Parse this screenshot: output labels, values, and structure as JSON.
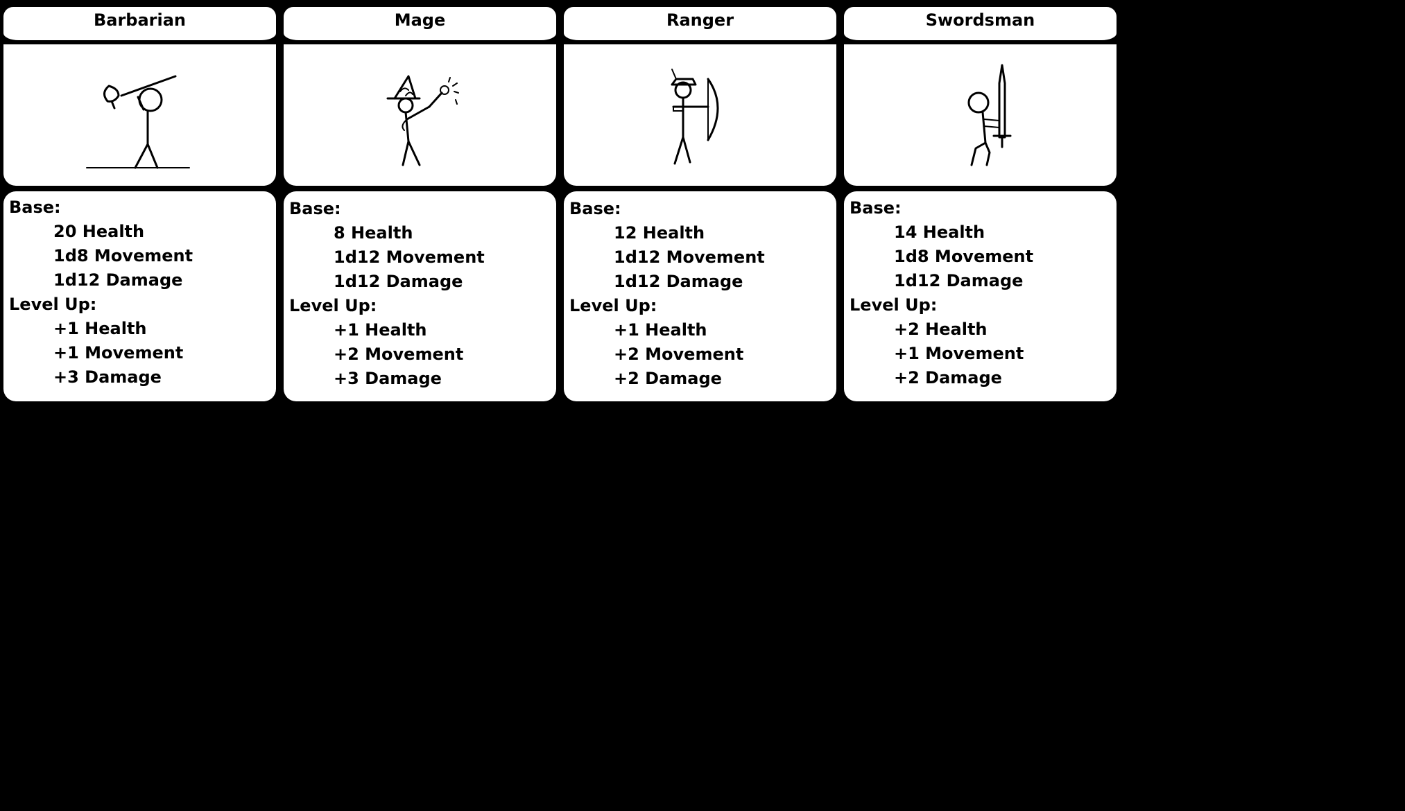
{
  "stat_headings": {
    "base": "Base:",
    "level_up": "Level Up:"
  },
  "classes": [
    {
      "name": "Barbarian",
      "portrait_icon": "barbarian-axe-figure",
      "base": [
        "20 Health",
        "1d8 Movement",
        "1d12 Damage"
      ],
      "level_up": [
        "+1 Health",
        "+1 Movement",
        "+3 Damage"
      ]
    },
    {
      "name": "Mage",
      "portrait_icon": "mage-wizard-figure",
      "base": [
        "8 Health",
        "1d12 Movement",
        "1d12 Damage"
      ],
      "level_up": [
        "+1 Health",
        "+2 Movement",
        "+3 Damage"
      ]
    },
    {
      "name": "Ranger",
      "portrait_icon": "ranger-bow-figure",
      "base": [
        "12 Health",
        "1d12 Movement",
        "1d12 Damage"
      ],
      "level_up": [
        "+1 Health",
        "+2 Movement",
        "+2 Damage"
      ]
    },
    {
      "name": "Swordsman",
      "portrait_icon": "swordsman-sword-figure",
      "base": [
        "14 Health",
        "1d8 Movement",
        "1d12 Damage"
      ],
      "level_up": [
        "+2 Health",
        "+1 Movement",
        "+2 Damage"
      ]
    }
  ]
}
